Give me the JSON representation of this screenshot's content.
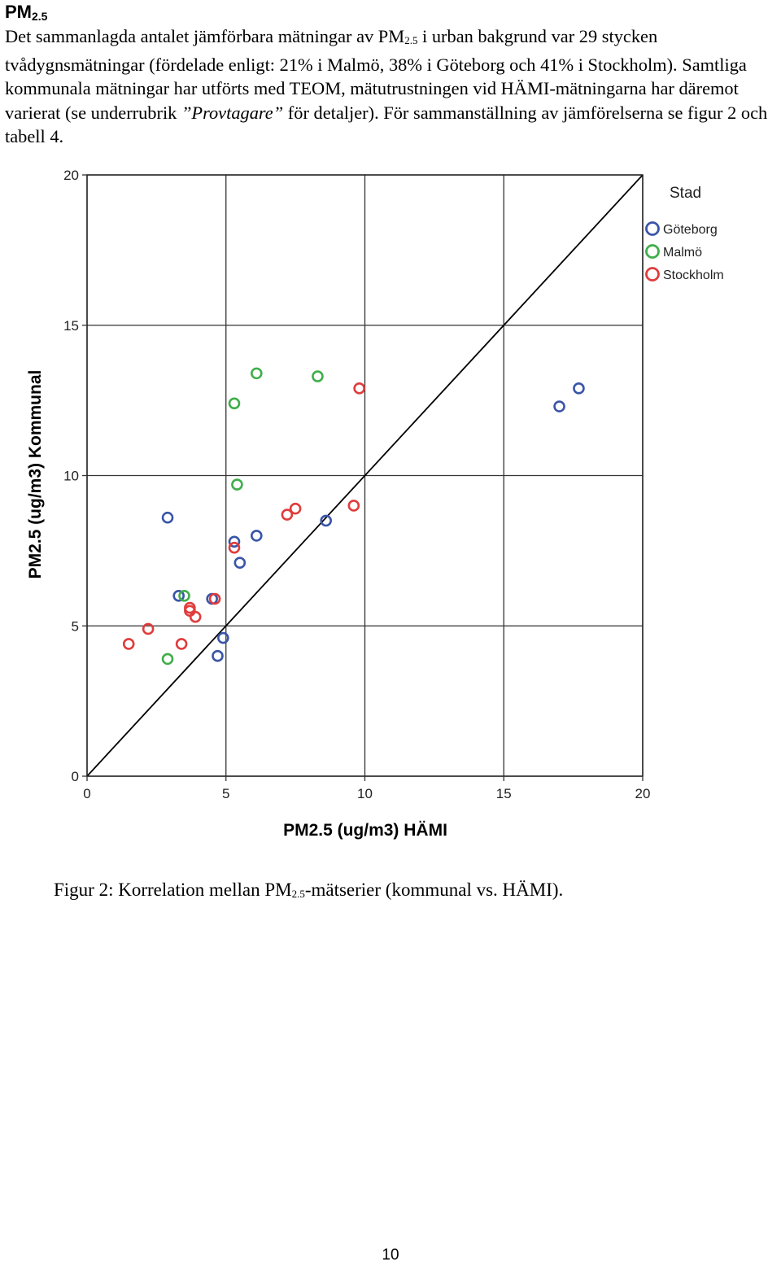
{
  "heading": {
    "main": "PM",
    "sub": "2.5"
  },
  "paragraph": {
    "p1a": "Det sammanlagda antalet jämförbara mätningar av PM",
    "p1sub": "2.5",
    "p1b": " i urban bakgrund var 29 stycken tvådygnsmätningar (fördelade enligt: 21% i Malmö, 38% i Göteborg och 41% i Stockholm). Samtliga kommunala mätningar har utförts med TEOM, mätutrustningen vid HÄMI-mätningarna har däremot varierat (se underrubrik ",
    "italic": "”Provtagare”",
    "p1c": " för detaljer). För sammanställning av jämförelserna se figur 2 och tabell 4."
  },
  "chart_data": {
    "type": "scatter",
    "xlabel": "PM2.5 (ug/m3) HÄMI",
    "ylabel": "PM2.5 (ug/m3) Kommunal",
    "xlim": [
      0,
      20
    ],
    "ylim": [
      0,
      20
    ],
    "xticks": [
      0,
      5,
      10,
      15,
      20
    ],
    "yticks": [
      0,
      5,
      10,
      15,
      20
    ],
    "grid": true,
    "reference_line": "y = x",
    "legend_title": "Stad",
    "legend_position": "top-right",
    "series": [
      {
        "name": "Göteborg",
        "color": "#3a55a8",
        "points": [
          [
            2.9,
            8.6
          ],
          [
            3.3,
            6.0
          ],
          [
            4.5,
            5.9
          ],
          [
            5.3,
            7.8
          ],
          [
            5.5,
            7.1
          ],
          [
            6.1,
            8.0
          ],
          [
            8.6,
            8.5
          ],
          [
            4.9,
            4.6
          ],
          [
            4.7,
            4.0
          ],
          [
            17.0,
            12.3
          ],
          [
            17.7,
            12.9
          ]
        ]
      },
      {
        "name": "Malmö",
        "color": "#3fae49",
        "points": [
          [
            3.5,
            6.0
          ],
          [
            2.9,
            3.9
          ],
          [
            5.3,
            12.4
          ],
          [
            6.1,
            13.4
          ],
          [
            8.3,
            13.3
          ],
          [
            5.4,
            9.7
          ]
        ]
      },
      {
        "name": "Stockholm",
        "color": "#e03c3c",
        "points": [
          [
            1.5,
            4.4
          ],
          [
            2.2,
            4.9
          ],
          [
            3.4,
            4.4
          ],
          [
            3.7,
            5.5
          ],
          [
            3.7,
            5.6
          ],
          [
            3.9,
            5.3
          ],
          [
            4.6,
            5.9
          ],
          [
            5.3,
            7.6
          ],
          [
            7.2,
            8.7
          ],
          [
            7.5,
            8.9
          ],
          [
            9.6,
            9.0
          ],
          [
            9.8,
            12.9
          ]
        ]
      }
    ]
  },
  "caption": {
    "a": "Figur 2: Korrelation mellan PM",
    "sub": "2.5",
    "b": "-mätserier (kommunal vs. HÄMI)."
  },
  "page_number": "10"
}
